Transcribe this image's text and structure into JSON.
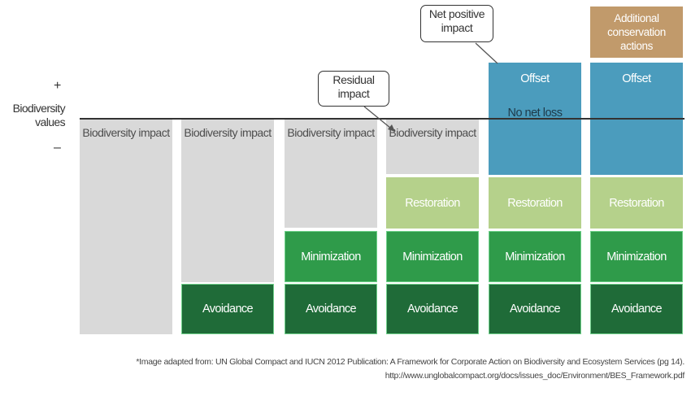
{
  "axis": {
    "plus": "+",
    "minus": "–",
    "label_line1": "Biodiversity",
    "label_line2": "values"
  },
  "callouts": {
    "residual": "Residual impact",
    "net_positive": "Net positive impact"
  },
  "center_label": "No net loss",
  "blocks": {
    "impact": "Biodiversity impact",
    "restoration": "Restoration",
    "minimization": "Minimization",
    "avoidance": "Avoidance",
    "offset": "Offset",
    "additional": "Additional conservation actions"
  },
  "footnote": {
    "line1": "*Image adapted from: UN Global Compact and IUCN 2012 Publication: A Framework for Corporate Action on Biodiversity and Ecosystem Services (pg 14).",
    "line2": "http://www.unglobalcompact.org/docs/issues_doc/Environment/BES_Framework.pdf"
  },
  "colors": {
    "impact": "#d9d9d9",
    "restoration": "#b5d18b",
    "minimization": "#2f9b4a",
    "avoidance": "#1f6b38",
    "offset": "#4b9cbd",
    "additional": "#c19a6b"
  }
}
